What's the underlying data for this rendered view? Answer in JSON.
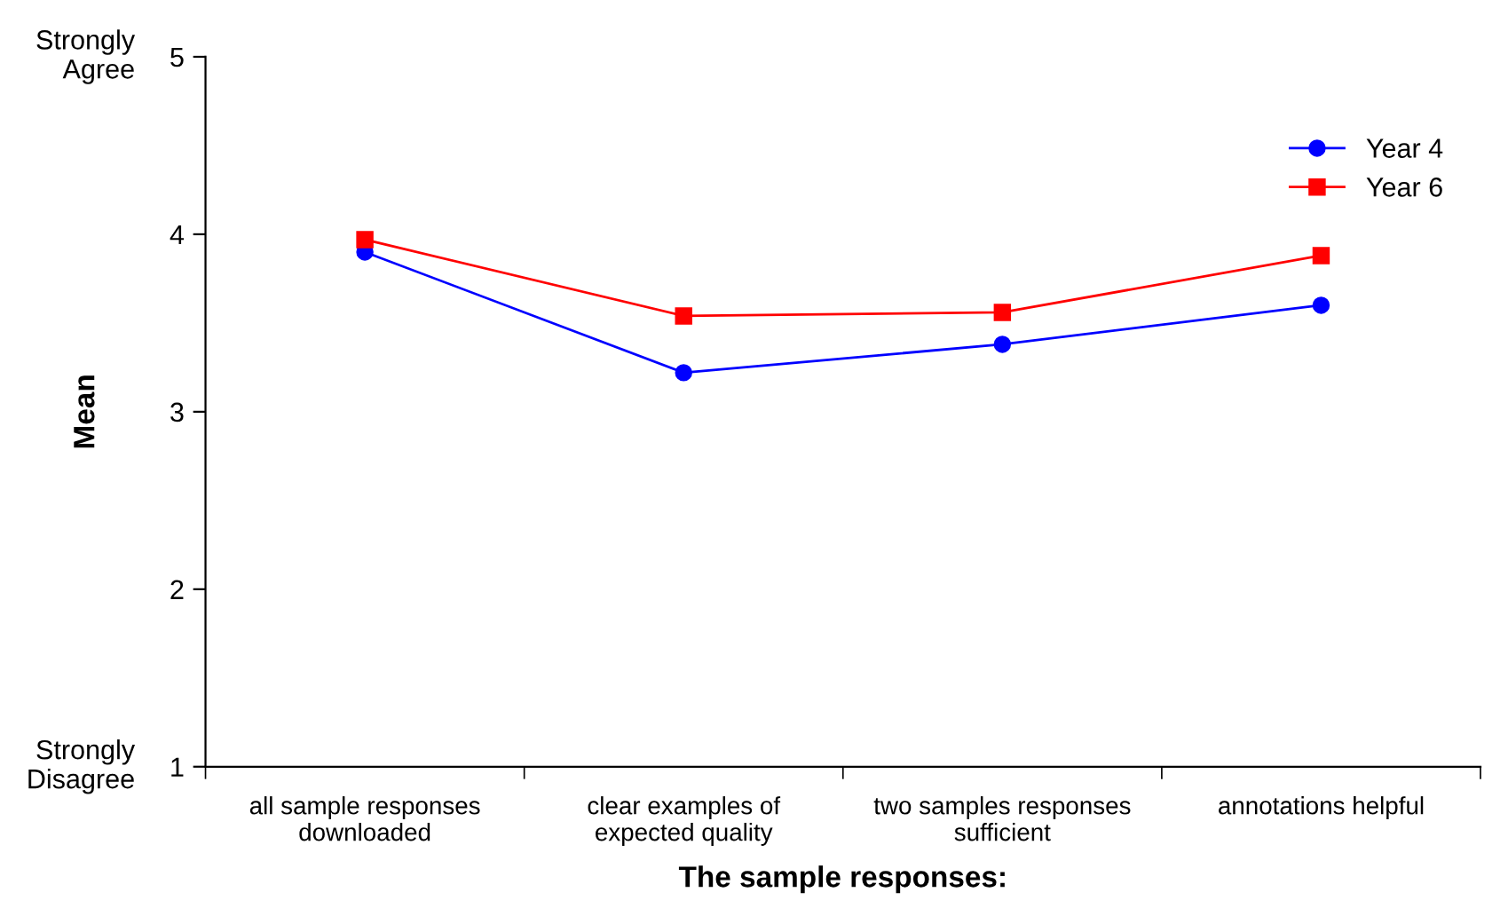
{
  "chart_data": {
    "type": "line",
    "xlabel": "The sample responses:",
    "ylabel": "Mean",
    "categories": [
      "all sample responses\ndownloaded",
      "clear examples of\nexpected quality",
      "two samples responses\nsufficient",
      "annotations helpful"
    ],
    "series": [
      {
        "name": "Year 4",
        "color": "#0000ff",
        "values": [
          3.9,
          3.22,
          3.38,
          3.6
        ],
        "marker": "circle"
      },
      {
        "name": "Year 6",
        "color": "#ff0000",
        "values": [
          3.97,
          3.54,
          3.56,
          3.88
        ],
        "marker": "square"
      }
    ],
    "ylim": [
      1,
      5
    ],
    "yticks": [
      1,
      2,
      3,
      4,
      5
    ],
    "grid": false,
    "legend": "top right",
    "line_style": "solid",
    "annotations": [
      "Strongly\nAgree",
      "Strongly\nDisagree"
    ]
  }
}
